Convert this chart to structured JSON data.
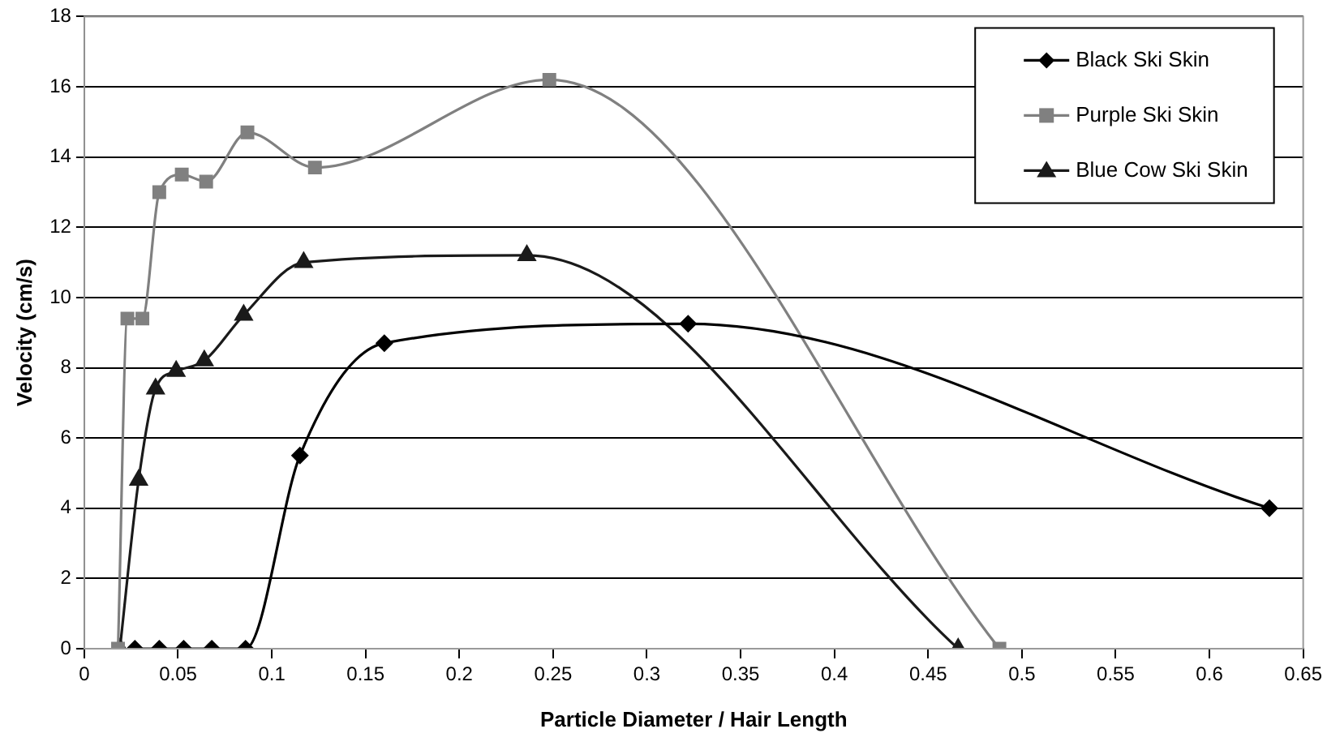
{
  "chart_data": {
    "type": "scatter",
    "xlabel": "Particle Diameter / Hair Length",
    "ylabel": "Velocity (cm/s)",
    "xlim": [
      0,
      0.65
    ],
    "xticks": [
      0,
      0.05,
      0.1,
      0.15,
      0.2,
      0.25,
      0.3,
      0.35,
      0.4,
      0.45,
      0.5,
      0.55,
      0.6,
      0.65
    ],
    "ylim": [
      0,
      18
    ],
    "yticks": [
      0,
      2,
      4,
      6,
      8,
      10,
      12,
      14,
      16,
      18
    ],
    "grid": "y",
    "legend": "top right",
    "line_style": "solid",
    "series": [
      {
        "name": "Black Ski Skin",
        "type": "line",
        "marker": "diamond",
        "color": "#000000",
        "x": [
          0.027,
          0.04,
          0.053,
          0.068,
          0.086,
          0.115,
          0.16,
          0.322,
          0.632
        ],
        "values": [
          0,
          0,
          0,
          0,
          0,
          5.5,
          8.7,
          9.25,
          4.0
        ]
      },
      {
        "name": "Purple Ski Skin",
        "type": "line",
        "marker": "square",
        "color": "#808080",
        "x": [
          0.018,
          0.023,
          0.031,
          0.04,
          0.052,
          0.065,
          0.087,
          0.123,
          0.248,
          0.488
        ],
        "values": [
          0,
          9.4,
          9.4,
          13.0,
          13.5,
          13.3,
          14.7,
          13.7,
          16.2,
          0
        ]
      },
      {
        "name": "Blue Cow Ski Skin",
        "type": "line",
        "marker": "triangle",
        "color": "#1a1a1a",
        "x": [
          0.019,
          0.029,
          0.038,
          0.049,
          0.064,
          0.085,
          0.117,
          0.236,
          0.466
        ],
        "values": [
          0,
          4.8,
          7.4,
          7.9,
          8.2,
          9.5,
          11.0,
          11.2,
          0
        ]
      }
    ]
  }
}
